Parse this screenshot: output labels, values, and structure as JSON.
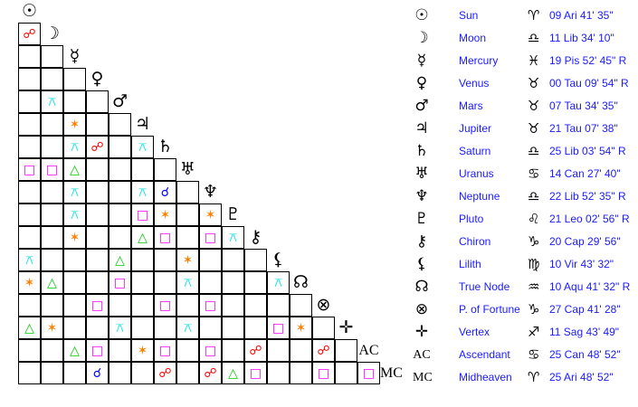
{
  "planets": [
    {
      "name": "Sun",
      "glyph": "☉",
      "sign_glyph": "♈",
      "position": "09 Ari 41' 35\""
    },
    {
      "name": "Moon",
      "glyph": "☽",
      "sign_glyph": "♎",
      "position": "11 Lib 34' 10\""
    },
    {
      "name": "Mercury",
      "glyph": "☿",
      "sign_glyph": "♓",
      "position": "19 Pis 52' 45\" R"
    },
    {
      "name": "Venus",
      "glyph": "♀",
      "sign_glyph": "♉",
      "position": "00 Tau 09' 54\" R"
    },
    {
      "name": "Mars",
      "glyph": "♂",
      "sign_glyph": "♉",
      "position": "07 Tau 34' 35\""
    },
    {
      "name": "Jupiter",
      "glyph": "♃",
      "sign_glyph": "♉",
      "position": "21 Tau 07' 38\""
    },
    {
      "name": "Saturn",
      "glyph": "♄",
      "sign_glyph": "♎",
      "position": "25 Lib 03' 54\" R"
    },
    {
      "name": "Uranus",
      "glyph": "♅",
      "sign_glyph": "♋",
      "position": "14 Can 27' 40\""
    },
    {
      "name": "Neptune",
      "glyph": "♆",
      "sign_glyph": "♎",
      "position": "22 Lib 52' 35\" R"
    },
    {
      "name": "Pluto",
      "glyph": "♇",
      "sign_glyph": "♌",
      "position": "21 Leo 02' 56\" R"
    },
    {
      "name": "Chiron",
      "glyph": "⚷",
      "sign_glyph": "♑",
      "position": "20 Cap 29' 56\""
    },
    {
      "name": "Lilith",
      "glyph": "⚸",
      "sign_glyph": "♍",
      "position": "10 Vir 43' 32\""
    },
    {
      "name": "True Node",
      "glyph": "☊",
      "sign_glyph": "♒",
      "position": "10 Aqu 41' 32\" R"
    },
    {
      "name": "P. of Fortune",
      "glyph": "⊗",
      "sign_glyph": "♑",
      "position": "27 Cap 41' 28\""
    },
    {
      "name": "Vertex",
      "glyph": "✛",
      "sign_glyph": "♐",
      "position": "11 Sag 43' 49\""
    },
    {
      "name": "Ascendant",
      "glyph": "AC",
      "sign_glyph": "♋",
      "position": "25 Can 48' 52\""
    },
    {
      "name": "Midheaven",
      "glyph": "MC",
      "sign_glyph": "♈",
      "position": "25 Ari 48' 52\""
    }
  ],
  "aspect_types": {
    "conjunction": {
      "glyph": "☌",
      "color": "#0000ff"
    },
    "opposition": {
      "glyph": "☍",
      "color": "#ff0000"
    },
    "square": {
      "glyph": "□",
      "color": "#ff00ff"
    },
    "trine": {
      "glyph": "△",
      "color": "#00cc00"
    },
    "sextile": {
      "glyph": "✶",
      "color": "#ff8000"
    },
    "quincunx": {
      "glyph": "⚻",
      "color": "#00e5e5"
    }
  },
  "aspects": [
    [
      "Moon",
      "Sun",
      "opposition"
    ],
    [
      "Mars",
      "Moon",
      "quincunx"
    ],
    [
      "Jupiter",
      "Mercury",
      "sextile"
    ],
    [
      "Saturn",
      "Mercury",
      "quincunx"
    ],
    [
      "Saturn",
      "Venus",
      "opposition"
    ],
    [
      "Saturn",
      "Jupiter",
      "quincunx"
    ],
    [
      "Uranus",
      "Sun",
      "square"
    ],
    [
      "Uranus",
      "Moon",
      "square"
    ],
    [
      "Uranus",
      "Mercury",
      "trine"
    ],
    [
      "Neptune",
      "Mercury",
      "quincunx"
    ],
    [
      "Neptune",
      "Jupiter",
      "quincunx"
    ],
    [
      "Neptune",
      "Saturn",
      "conjunction"
    ],
    [
      "Pluto",
      "Mercury",
      "quincunx"
    ],
    [
      "Pluto",
      "Jupiter",
      "square"
    ],
    [
      "Pluto",
      "Saturn",
      "sextile"
    ],
    [
      "Pluto",
      "Neptune",
      "sextile"
    ],
    [
      "Chiron",
      "Mercury",
      "sextile"
    ],
    [
      "Chiron",
      "Jupiter",
      "trine"
    ],
    [
      "Chiron",
      "Saturn",
      "square"
    ],
    [
      "Chiron",
      "Neptune",
      "square"
    ],
    [
      "Chiron",
      "Pluto",
      "quincunx"
    ],
    [
      "Lilith",
      "Sun",
      "quincunx"
    ],
    [
      "Lilith",
      "Mars",
      "trine"
    ],
    [
      "Lilith",
      "Uranus",
      "sextile"
    ],
    [
      "True Node",
      "Sun",
      "sextile"
    ],
    [
      "True Node",
      "Moon",
      "trine"
    ],
    [
      "True Node",
      "Mars",
      "square"
    ],
    [
      "True Node",
      "Uranus",
      "quincunx"
    ],
    [
      "True Node",
      "Lilith",
      "quincunx"
    ],
    [
      "P. of Fortune",
      "Venus",
      "square"
    ],
    [
      "P. of Fortune",
      "Saturn",
      "square"
    ],
    [
      "P. of Fortune",
      "Neptune",
      "square"
    ],
    [
      "Vertex",
      "Sun",
      "trine"
    ],
    [
      "Vertex",
      "Moon",
      "sextile"
    ],
    [
      "Vertex",
      "Mars",
      "quincunx"
    ],
    [
      "Vertex",
      "Uranus",
      "quincunx"
    ],
    [
      "Vertex",
      "Lilith",
      "square"
    ],
    [
      "Vertex",
      "True Node",
      "sextile"
    ],
    [
      "Ascendant",
      "Mercury",
      "trine"
    ],
    [
      "Ascendant",
      "Venus",
      "square"
    ],
    [
      "Ascendant",
      "Jupiter",
      "sextile"
    ],
    [
      "Ascendant",
      "Saturn",
      "square"
    ],
    [
      "Ascendant",
      "Neptune",
      "square"
    ],
    [
      "Ascendant",
      "Chiron",
      "opposition"
    ],
    [
      "Ascendant",
      "P. of Fortune",
      "opposition"
    ],
    [
      "Midheaven",
      "Venus",
      "conjunction"
    ],
    [
      "Midheaven",
      "Saturn",
      "opposition"
    ],
    [
      "Midheaven",
      "Neptune",
      "opposition"
    ],
    [
      "Midheaven",
      "Pluto",
      "trine"
    ],
    [
      "Midheaven",
      "Chiron",
      "square"
    ],
    [
      "Midheaven",
      "P. of Fortune",
      "square"
    ],
    [
      "Midheaven",
      "Ascendant",
      "square"
    ]
  ]
}
